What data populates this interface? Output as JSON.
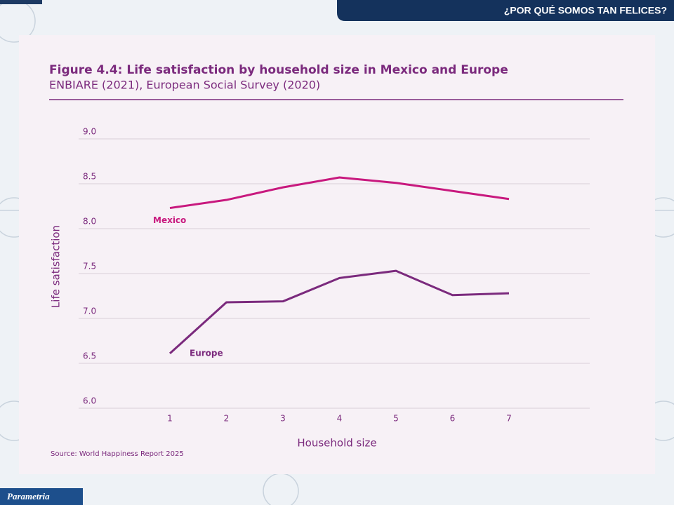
{
  "header": {
    "title": "¿POR QUÉ SOMOS TAN FELICES?"
  },
  "footer": {
    "logo": "Parametria"
  },
  "chart_data": {
    "type": "line",
    "title": "Figure 4.4: Life satisfaction by household size in Mexico and Europe",
    "subtitle": "ENBIARE (2021), European Social Survey (2020)",
    "x_label": "Household size",
    "y_label": "Life satisfaction",
    "source": "Source: World Happiness Report 2025",
    "categories": [
      "1",
      "2",
      "3",
      "4",
      "5",
      "6",
      "7"
    ],
    "series": [
      {
        "name": "Mexico",
        "color": "#c8197e",
        "values": [
          8.23,
          8.32,
          8.46,
          8.57,
          8.51,
          8.42,
          8.33
        ]
      },
      {
        "name": "Europe",
        "color": "#7b2a7d",
        "values": [
          6.61,
          7.18,
          7.19,
          7.45,
          7.53,
          7.26,
          7.28
        ]
      }
    ],
    "ylim": [
      6.0,
      9.0
    ],
    "yticks": [
      {
        "value": 6,
        "label": "6.0"
      },
      {
        "value": 6.5,
        "label": "6.5"
      },
      {
        "value": 7,
        "label": "7.0"
      },
      {
        "value": 7.5,
        "label": "7.5"
      },
      {
        "value": 8,
        "label": "8.0"
      },
      {
        "value": 8.5,
        "label": "8.5"
      },
      {
        "value": 9,
        "label": "9.0"
      }
    ],
    "grid": true
  }
}
